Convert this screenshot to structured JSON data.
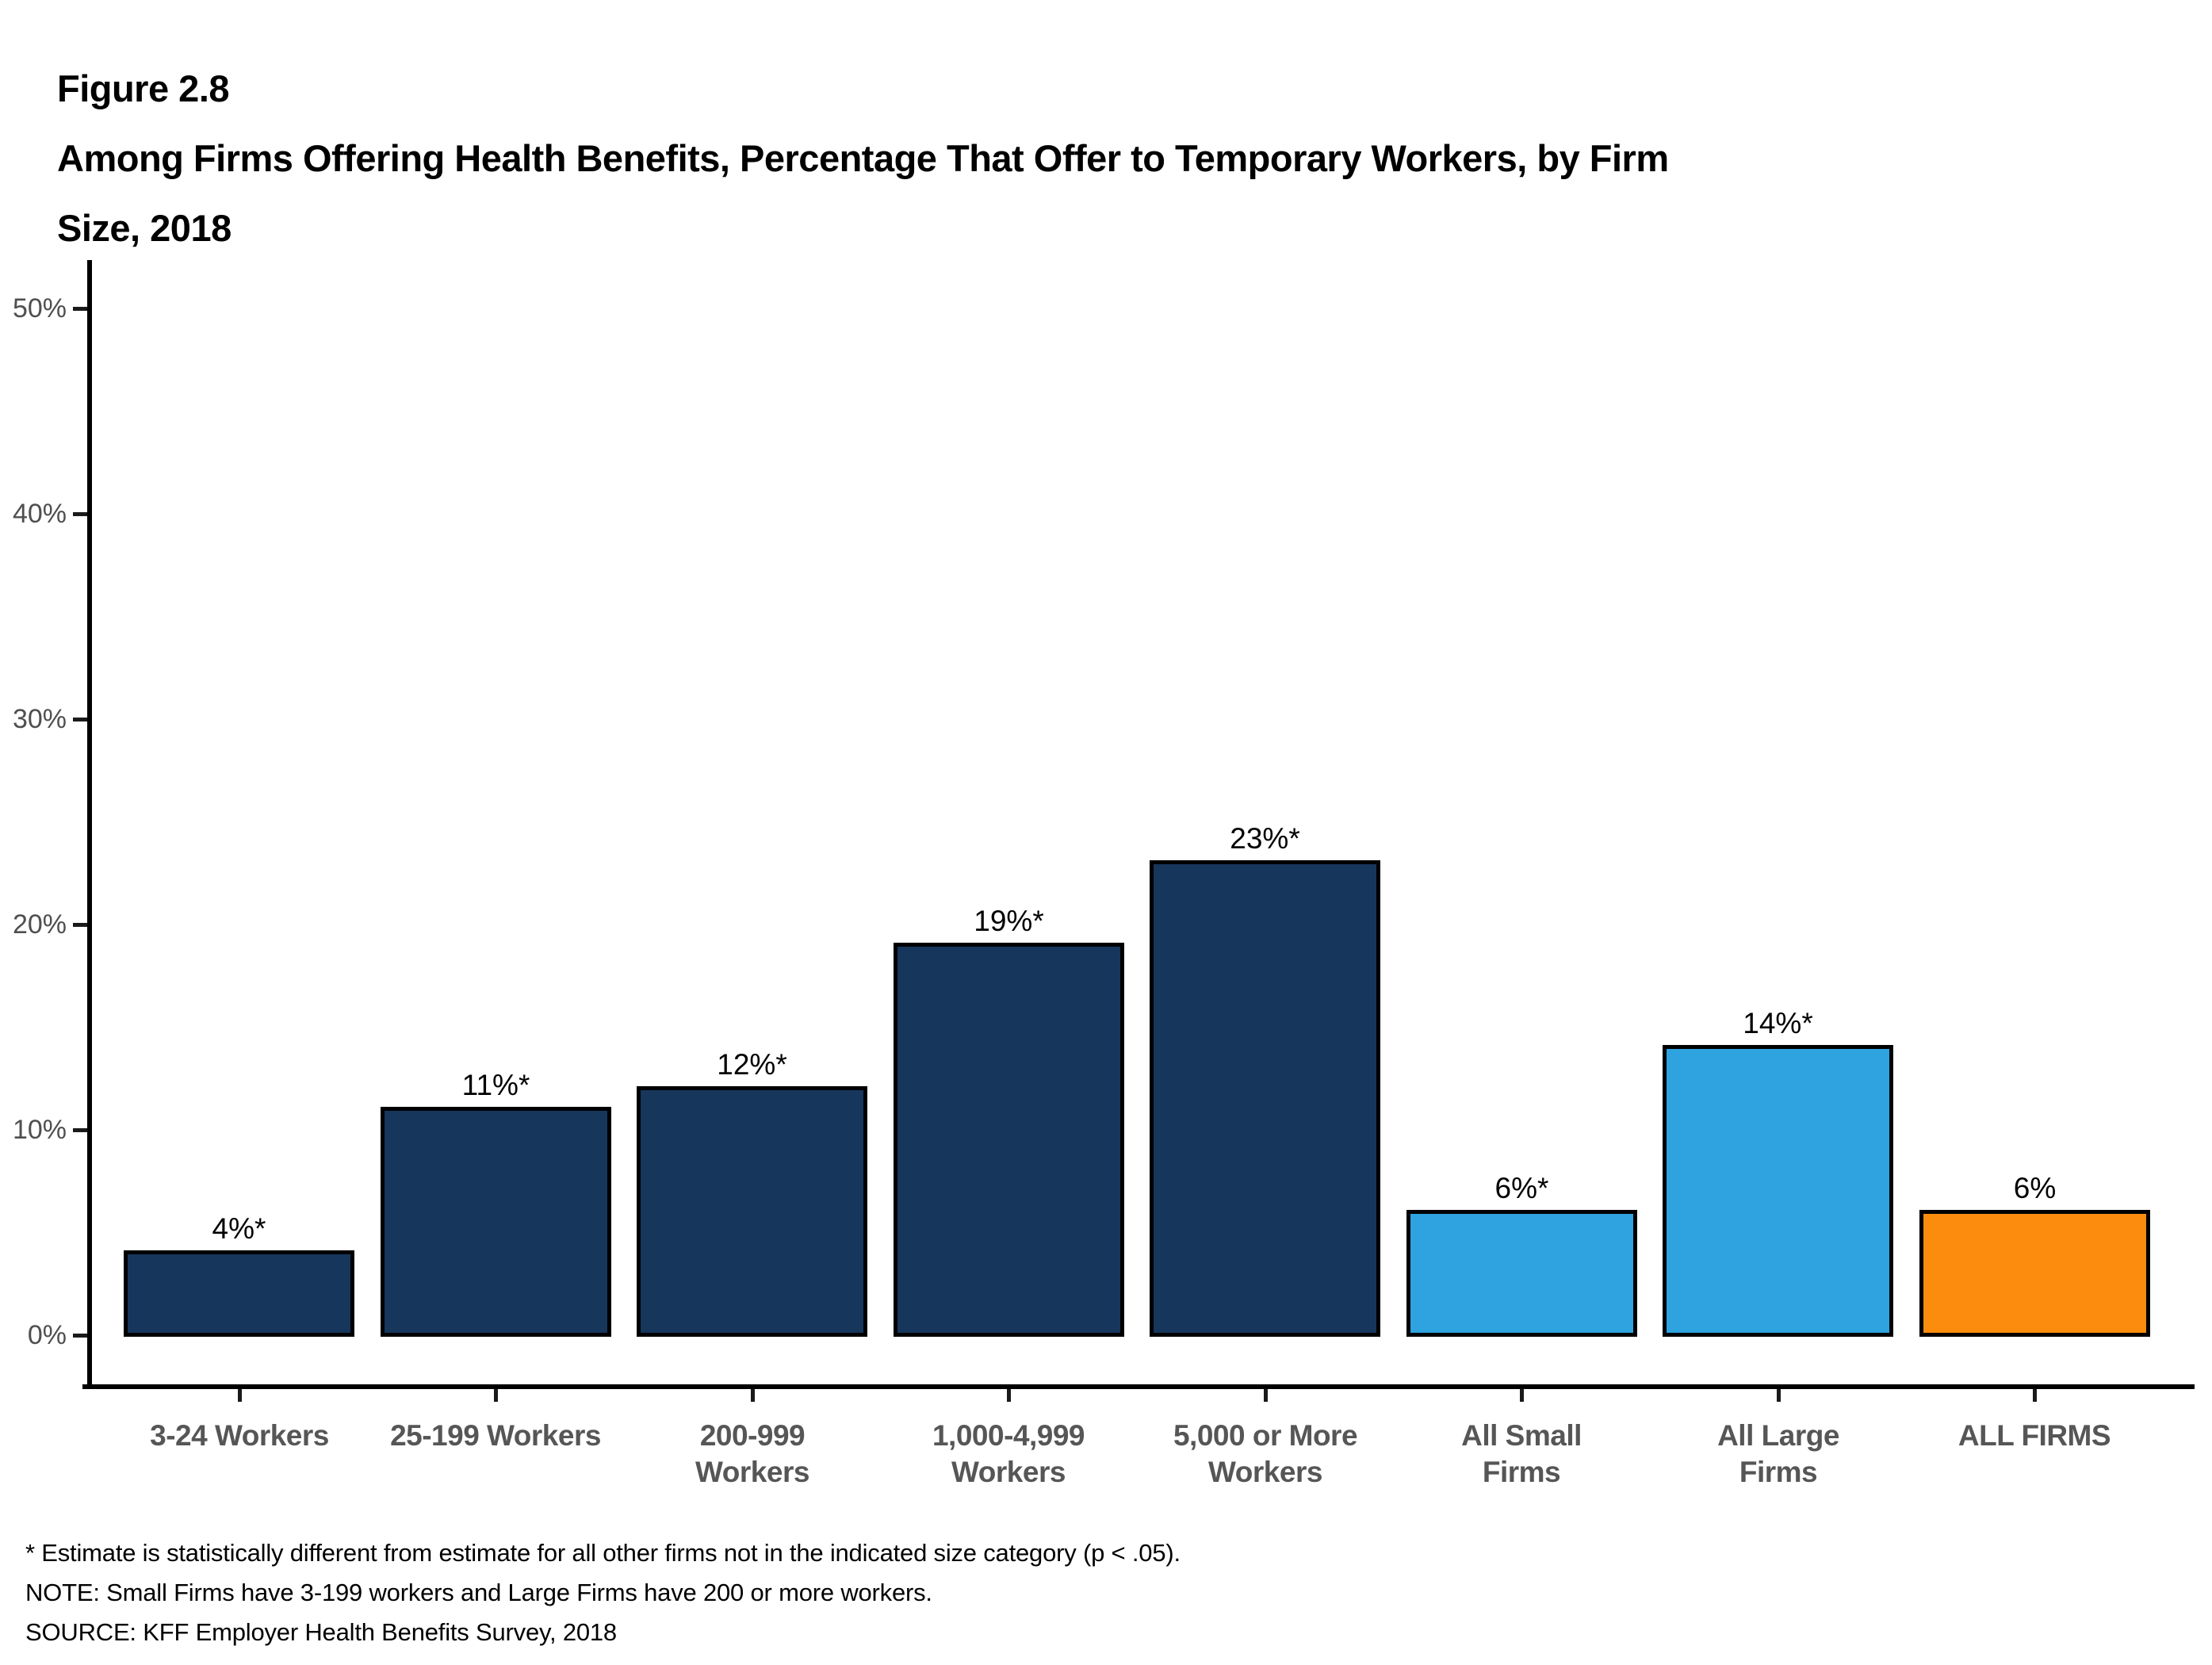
{
  "figure": {
    "label": "Figure 2.8",
    "title_line1": "Among Firms Offering Health Benefits, Percentage That Offer to Temporary Workers, by Firm",
    "title_line2": "Size, 2018"
  },
  "chart_data": {
    "type": "bar",
    "title": "Among Firms Offering Health Benefits, Percentage That Offer to Temporary Workers, by Firm Size, 2018",
    "categories": [
      "3-24 Workers",
      "25-199 Workers",
      "200-999\nWorkers",
      "1,000-4,999\nWorkers",
      "5,000 or More\nWorkers",
      "All Small\nFirms",
      "All Large\nFirms",
      "ALL FIRMS"
    ],
    "values": [
      4,
      11,
      12,
      19,
      23,
      6,
      14,
      6
    ],
    "value_labels": [
      "4%*",
      "11%*",
      "12%*",
      "19%*",
      "23%*",
      "6%*",
      "14%*",
      "6%"
    ],
    "bar_colors": [
      "#17365C",
      "#17365C",
      "#17365C",
      "#17365C",
      "#17365C",
      "#2EA3DF",
      "#2EA3DF",
      "#FB8C0E"
    ],
    "xlabel": "",
    "ylabel": "",
    "ylim": [
      0,
      50
    ],
    "ytick_values": [
      0,
      10,
      20,
      30,
      40,
      50
    ],
    "ytick_labels": [
      "0%",
      "10%",
      "20%",
      "30%",
      "40%",
      "50%"
    ],
    "grid": false,
    "legend": "none"
  },
  "footnotes": [
    "* Estimate is statistically different from estimate for all other firms not in the indicated size category (p < .05).",
    "NOTE: Small Firms have 3-199 workers and Large Firms have 200 or more workers.",
    "SOURCE: KFF Employer Health Benefits Survey, 2018"
  ],
  "colors": {
    "navy": "#17365C",
    "light_blue": "#2EA3DF",
    "orange": "#FB8C0E",
    "axis": "#000000",
    "tick_label": "#4f4f4f",
    "category_label": "#565656",
    "value_label": "#000000"
  }
}
